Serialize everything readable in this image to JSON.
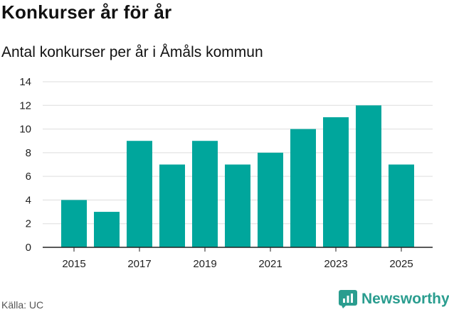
{
  "title": "Konkurser år för år",
  "subtitle": "Antal konkurser per år i Åmåls kommun",
  "source": "Källa: UC",
  "brand": "Newsworthy",
  "colors": {
    "bar": "#00a69c",
    "grid": "#dddddd",
    "axis": "#222222",
    "brand": "#2a9d8f"
  },
  "chart_data": {
    "type": "bar",
    "title": "Konkurser år för år",
    "subtitle": "Antal konkurser per år i Åmåls kommun",
    "categories": [
      "2015",
      "2016",
      "2017",
      "2018",
      "2019",
      "2020",
      "2021",
      "2022",
      "2023",
      "2024",
      "2025"
    ],
    "values": [
      4,
      3,
      9,
      7,
      9,
      7,
      8,
      10,
      11,
      12,
      7
    ],
    "x_tick_labels": [
      "2015",
      "2017",
      "2019",
      "2021",
      "2023",
      "2025"
    ],
    "y_ticks": [
      0,
      2,
      4,
      6,
      8,
      10,
      12,
      14
    ],
    "ylim": [
      0,
      14
    ],
    "xlabel": "",
    "ylabel": "",
    "grid": true,
    "legend": "none"
  }
}
